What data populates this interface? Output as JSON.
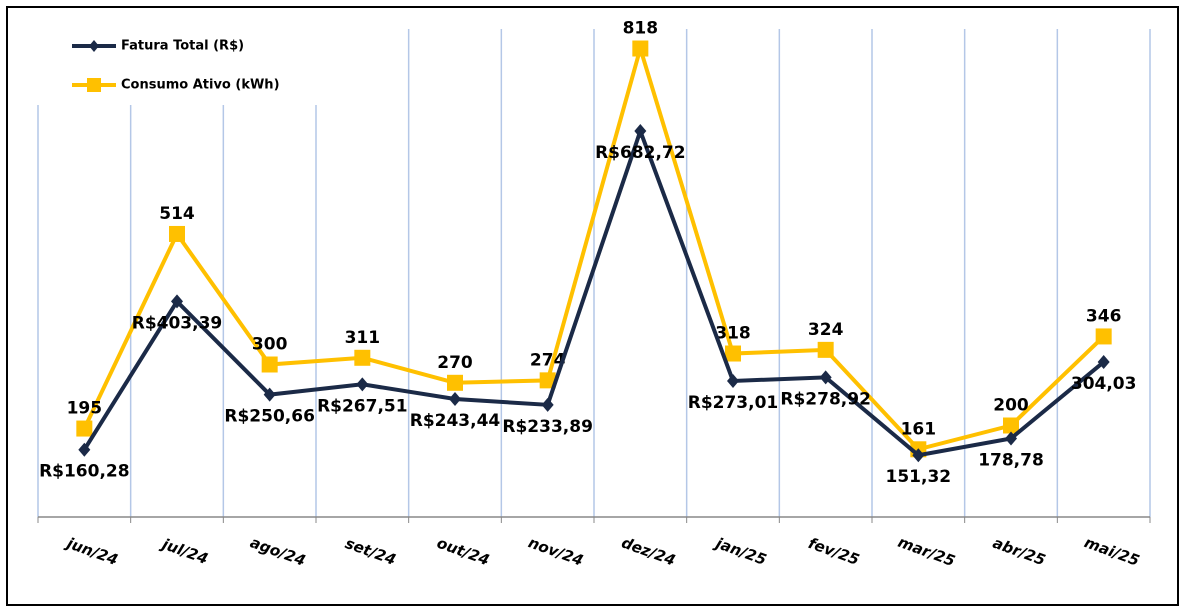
{
  "chart_data": {
    "type": "line",
    "categories": [
      "jun/24",
      "jul/24",
      "ago/24",
      "set/24",
      "out/24",
      "nov/24",
      "dez/24",
      "jan/25",
      "fev/25",
      "mar/25",
      "abr/25",
      "mai/25"
    ],
    "series": [
      {
        "name": "Fatura Total (R$)",
        "color": "#1b2a47",
        "values": [
          160.28,
          403.39,
          250.66,
          267.51,
          243.44,
          233.89,
          682.72,
          273.01,
          278.92,
          151.32,
          178.78,
          304.03
        ],
        "value_labels": [
          "R$160,28",
          "R$403,39",
          "R$250,66",
          "R$267,51",
          "R$243,44",
          "R$233,89",
          "R$682,72",
          "R$273,01",
          "R$278,92",
          "151,32",
          "178,78",
          "304,03"
        ]
      },
      {
        "name": "Consumo Ativo (kWh)",
        "color": "#ffc000",
        "values": [
          195,
          514,
          300,
          311,
          270,
          274,
          818,
          318,
          324,
          161,
          200,
          346
        ]
      }
    ],
    "ylim": [
      50,
      850
    ],
    "grid": true
  }
}
